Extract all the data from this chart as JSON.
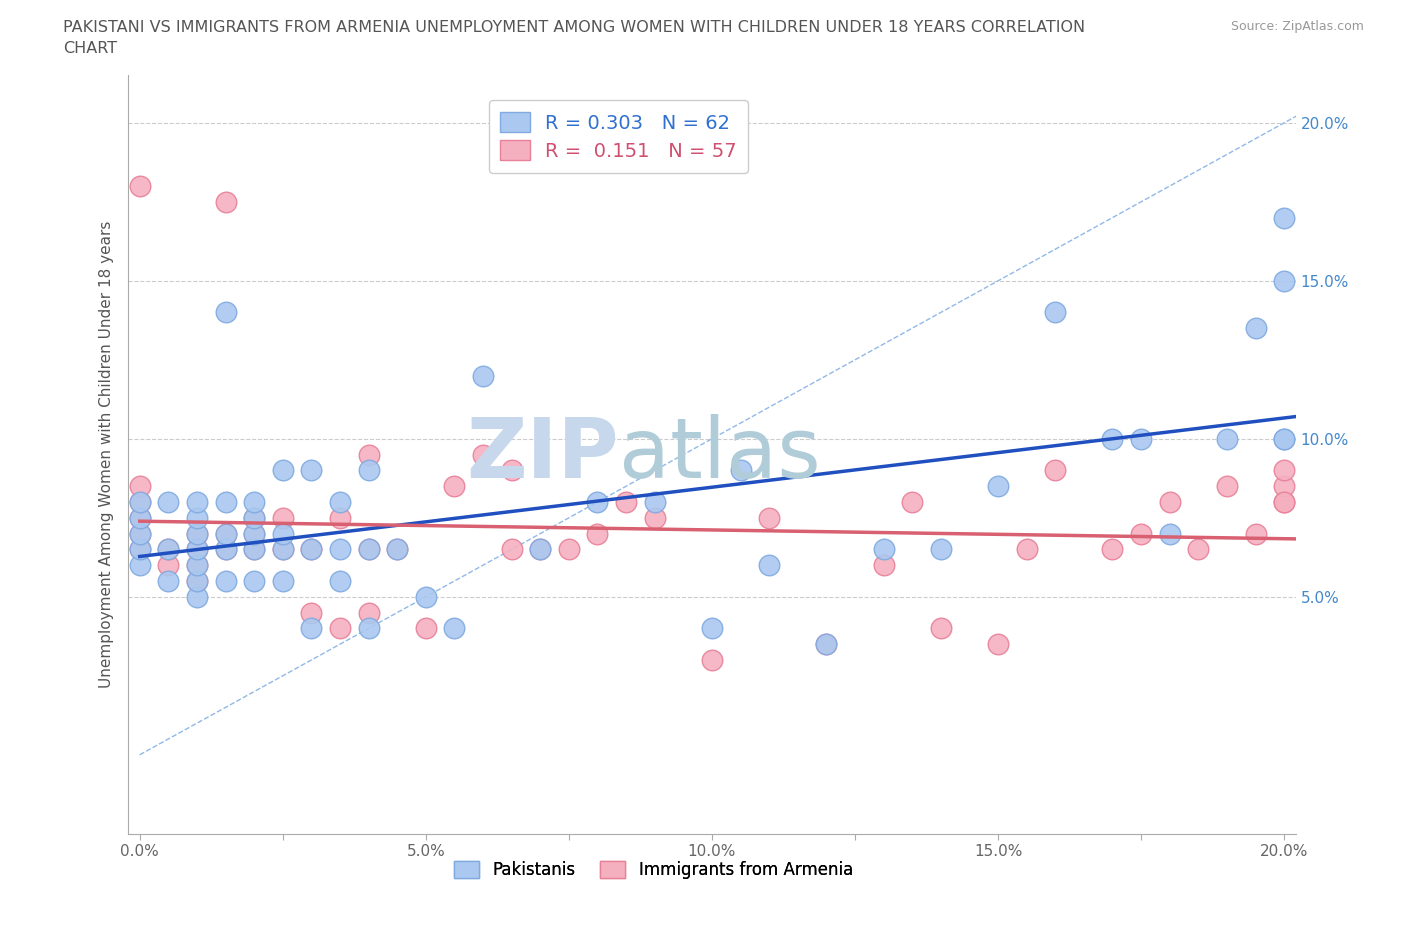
{
  "title_line1": "PAKISTANI VS IMMIGRANTS FROM ARMENIA UNEMPLOYMENT AMONG WOMEN WITH CHILDREN UNDER 18 YEARS CORRELATION",
  "title_line2": "CHART",
  "source": "Source: ZipAtlas.com",
  "ylabel": "Unemployment Among Women with Children Under 18 years",
  "xlim": [
    -0.002,
    0.202
  ],
  "ylim": [
    -0.025,
    0.215
  ],
  "xticks": [
    0.0,
    0.025,
    0.05,
    0.075,
    0.1,
    0.125,
    0.15,
    0.175,
    0.2
  ],
  "xticklabels": [
    "0.0%",
    "",
    "5.0%",
    "",
    "10.0%",
    "",
    "15.0%",
    "",
    "20.0%"
  ],
  "ytick_vals": [
    0.05,
    0.1,
    0.15,
    0.2
  ],
  "yticklabels": [
    "5.0%",
    "10.0%",
    "15.0%",
    "20.0%"
  ],
  "blue_r": 0.303,
  "blue_n": 62,
  "pink_r": 0.151,
  "pink_n": 57,
  "blue_color": "#aac8f0",
  "blue_edge": "#80aae0",
  "pink_color": "#f5b0c0",
  "pink_edge": "#e88098",
  "blue_line_color": "#2050c0",
  "pink_line_color": "#d86070",
  "diagonal_color": "#90b8e8",
  "watermark_zip_color": "#c8d4e8",
  "watermark_atlas_color": "#b0c8d8",
  "legend_blue_text": "#3070d0",
  "legend_pink_text": "#d05070",
  "ytick_color": "#4488cc",
  "blue_x": [
    0.0,
    0.0,
    0.0,
    0.0,
    0.0,
    0.005,
    0.005,
    0.005,
    0.01,
    0.01,
    0.01,
    0.01,
    0.01,
    0.01,
    0.01,
    0.015,
    0.015,
    0.015,
    0.015,
    0.015,
    0.02,
    0.02,
    0.02,
    0.02,
    0.02,
    0.025,
    0.025,
    0.025,
    0.025,
    0.03,
    0.03,
    0.03,
    0.035,
    0.035,
    0.035,
    0.04,
    0.04,
    0.04,
    0.045,
    0.05,
    0.055,
    0.06,
    0.07,
    0.08,
    0.09,
    0.1,
    0.105,
    0.11,
    0.12,
    0.13,
    0.14,
    0.15,
    0.16,
    0.17,
    0.175,
    0.18,
    0.19,
    0.195,
    0.2,
    0.2,
    0.2,
    0.2
  ],
  "blue_y": [
    0.06,
    0.065,
    0.07,
    0.075,
    0.08,
    0.055,
    0.065,
    0.08,
    0.05,
    0.055,
    0.06,
    0.065,
    0.07,
    0.075,
    0.08,
    0.055,
    0.065,
    0.07,
    0.08,
    0.14,
    0.055,
    0.065,
    0.07,
    0.075,
    0.08,
    0.055,
    0.065,
    0.07,
    0.09,
    0.04,
    0.065,
    0.09,
    0.055,
    0.065,
    0.08,
    0.04,
    0.065,
    0.09,
    0.065,
    0.05,
    0.04,
    0.12,
    0.065,
    0.08,
    0.08,
    0.04,
    0.09,
    0.06,
    0.035,
    0.065,
    0.065,
    0.085,
    0.14,
    0.1,
    0.1,
    0.07,
    0.1,
    0.135,
    0.15,
    0.1,
    0.1,
    0.17
  ],
  "pink_x": [
    0.0,
    0.0,
    0.0,
    0.0,
    0.0,
    0.0,
    0.005,
    0.005,
    0.01,
    0.01,
    0.01,
    0.01,
    0.015,
    0.015,
    0.015,
    0.02,
    0.02,
    0.02,
    0.025,
    0.025,
    0.03,
    0.03,
    0.035,
    0.035,
    0.04,
    0.04,
    0.04,
    0.045,
    0.05,
    0.055,
    0.06,
    0.065,
    0.065,
    0.07,
    0.075,
    0.08,
    0.085,
    0.09,
    0.1,
    0.11,
    0.12,
    0.13,
    0.135,
    0.14,
    0.15,
    0.155,
    0.16,
    0.17,
    0.175,
    0.18,
    0.185,
    0.19,
    0.195,
    0.2,
    0.2,
    0.2,
    0.2
  ],
  "pink_y": [
    0.065,
    0.07,
    0.075,
    0.08,
    0.085,
    0.18,
    0.06,
    0.065,
    0.055,
    0.06,
    0.065,
    0.07,
    0.065,
    0.07,
    0.175,
    0.065,
    0.07,
    0.075,
    0.065,
    0.075,
    0.045,
    0.065,
    0.04,
    0.075,
    0.045,
    0.065,
    0.095,
    0.065,
    0.04,
    0.085,
    0.095,
    0.065,
    0.09,
    0.065,
    0.065,
    0.07,
    0.08,
    0.075,
    0.03,
    0.075,
    0.035,
    0.06,
    0.08,
    0.04,
    0.035,
    0.065,
    0.09,
    0.065,
    0.07,
    0.08,
    0.065,
    0.085,
    0.07,
    0.08,
    0.085,
    0.09,
    0.08
  ]
}
